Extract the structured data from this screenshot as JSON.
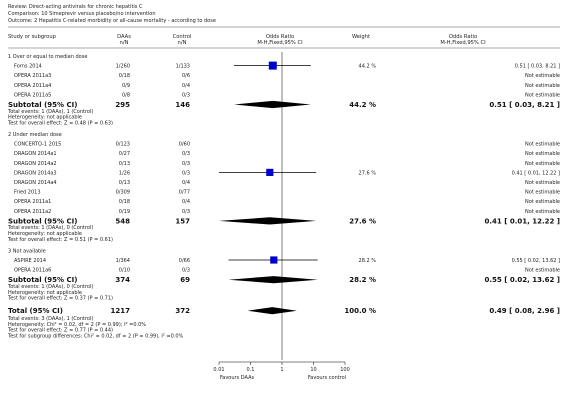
{
  "header": {
    "review": "Review:  Direct-acting antivirals for chronic hepatitis C",
    "comparison": "Comparison:  10 Simeprevir versus placebo/no intervention",
    "outcome": "Outcome:  2 Hepatitis C-related morbidity or all-cause mortality - according to dose"
  },
  "columns": {
    "study": "Study or subgroup",
    "daas": "DAAs",
    "daas_sub": "n/N",
    "control": "Control",
    "control_sub": "n/N",
    "or": "Odds Ratio",
    "or_sub": "M-H,Fixed,95% CI",
    "weight": "Weight",
    "or2": "Odds Ratio",
    "or2_sub": "M-H,Fixed,95% CI"
  },
  "colors": {
    "marker": "#0000cc",
    "diamond": "#000000",
    "line": "#000000"
  },
  "axis": {
    "ticks": [
      0.01,
      0.1,
      1,
      10,
      100
    ],
    "tick_labels": [
      "0.01",
      "0.1",
      "1",
      "10",
      "100"
    ],
    "scale": "log",
    "left_label": "Favours DAAs",
    "right_label": "Favours control"
  },
  "chart_data": {
    "type": "forest",
    "subgroups": [
      {
        "title": "1 Over or equal to median dose",
        "studies": [
          {
            "name": "Forns 2014",
            "daas": "1/260",
            "control": "1/133",
            "or": 0.51,
            "lo": 0.03,
            "hi": 8.21,
            "weight": "44.2 %",
            "ci_text": "0.51 [ 0.03, 8.21 ]"
          },
          {
            "name": "OPERA 2011a3",
            "daas": "0/18",
            "control": "0/6",
            "weight": "",
            "ci_text": "Not estimable"
          },
          {
            "name": "OPERA 2011a4",
            "daas": "0/9",
            "control": "0/4",
            "weight": "",
            "ci_text": "Not estimable"
          },
          {
            "name": "OPERA 2011a5",
            "daas": "0/8",
            "control": "0/3",
            "weight": "",
            "ci_text": "Not estimable"
          }
        ],
        "subtotal": {
          "label": "Subtotal (95% CI)",
          "daas": "295",
          "control": "146",
          "weight": "44.2 %",
          "ci_text": "0.51 [ 0.03, 8.21 ]",
          "or": 0.51,
          "lo": 0.03,
          "hi": 8.21
        },
        "notes": [
          "Total events: 1 (DAAs), 1 (Control)",
          "Heterogeneity: not applicable",
          "Test for overall effect: Z = 0.48 (P = 0.63)"
        ]
      },
      {
        "title": "2 Under median dose",
        "studies": [
          {
            "name": "CONCERTO-1 2015",
            "daas": "0/123",
            "control": "0/60",
            "weight": "",
            "ci_text": "Not estimable"
          },
          {
            "name": "DRAGON 2014a1",
            "daas": "0/27",
            "control": "0/3",
            "weight": "",
            "ci_text": "Not estimable"
          },
          {
            "name": "DRAGON 2014a2",
            "daas": "0/13",
            "control": "0/3",
            "weight": "",
            "ci_text": "Not estimable"
          },
          {
            "name": "DRAGON 2014a3",
            "daas": "1/26",
            "control": "0/3",
            "or": 0.41,
            "lo": 0.01,
            "hi": 12.22,
            "weight": "27.6 %",
            "ci_text": "0.41 [ 0.01, 12.22 ]"
          },
          {
            "name": "DRAGON 2014a4",
            "daas": "0/13",
            "control": "0/4",
            "weight": "",
            "ci_text": "Not estimable"
          },
          {
            "name": "Fried 2013",
            "daas": "0/309",
            "control": "0/77",
            "weight": "",
            "ci_text": "Not estimable"
          },
          {
            "name": "OPERA 2011a1",
            "daas": "0/18",
            "control": "0/4",
            "weight": "",
            "ci_text": "Not estimable"
          },
          {
            "name": "OPERA 2011a2",
            "daas": "0/19",
            "control": "0/3",
            "weight": "",
            "ci_text": "Not estimable"
          }
        ],
        "subtotal": {
          "label": "Subtotal (95% CI)",
          "daas": "548",
          "control": "157",
          "weight": "27.6 %",
          "ci_text": "0.41 [ 0.01, 12.22 ]",
          "or": 0.41,
          "lo": 0.01,
          "hi": 12.22
        },
        "notes": [
          "Total events: 1 (DAAs), 0 (Control)",
          "Heterogeneity: not applicable",
          "Test for overall effect: Z = 0.51 (P = 0.61)"
        ]
      },
      {
        "title": "3 Not available",
        "studies": [
          {
            "name": "ASPIRE 2014",
            "daas": "1/364",
            "control": "0/66",
            "or": 0.55,
            "lo": 0.02,
            "hi": 13.62,
            "weight": "28.2 %",
            "ci_text": "0.55 [ 0.02, 13.62 ]"
          },
          {
            "name": "OPERA 2011a6",
            "daas": "0/10",
            "control": "0/3",
            "weight": "",
            "ci_text": "Not estimable"
          }
        ],
        "subtotal": {
          "label": "Subtotal (95% CI)",
          "daas": "374",
          "control": "69",
          "weight": "28.2 %",
          "ci_text": "0.55 [ 0.02, 13.62 ]",
          "or": 0.55,
          "lo": 0.02,
          "hi": 13.62
        },
        "notes": [
          "Total events: 1 (DAAs), 0 (Control)",
          "Heterogeneity: not applicable",
          "Test for overall effect: Z = 0.37 (P = 0.71)"
        ]
      }
    ],
    "total": {
      "label": "Total (95% CI)",
      "daas": "1217",
      "control": "372",
      "weight": "100.0 %",
      "ci_text": "0.49 [ 0.08, 2.96 ]",
      "or": 0.49,
      "lo": 0.08,
      "hi": 2.96,
      "notes": [
        "Total events: 3 (DAAs), 1 (Control)",
        "Heterogeneity: Chi² = 0.02, df = 2 (P = 0.99); I² =0.0%",
        "Test for overall effect: Z = 0.77 (P = 0.44)",
        "Test for subgroup differences: Chi² = 0.02, df = 2 (P = 0.99), I² =0.0%"
      ]
    }
  }
}
